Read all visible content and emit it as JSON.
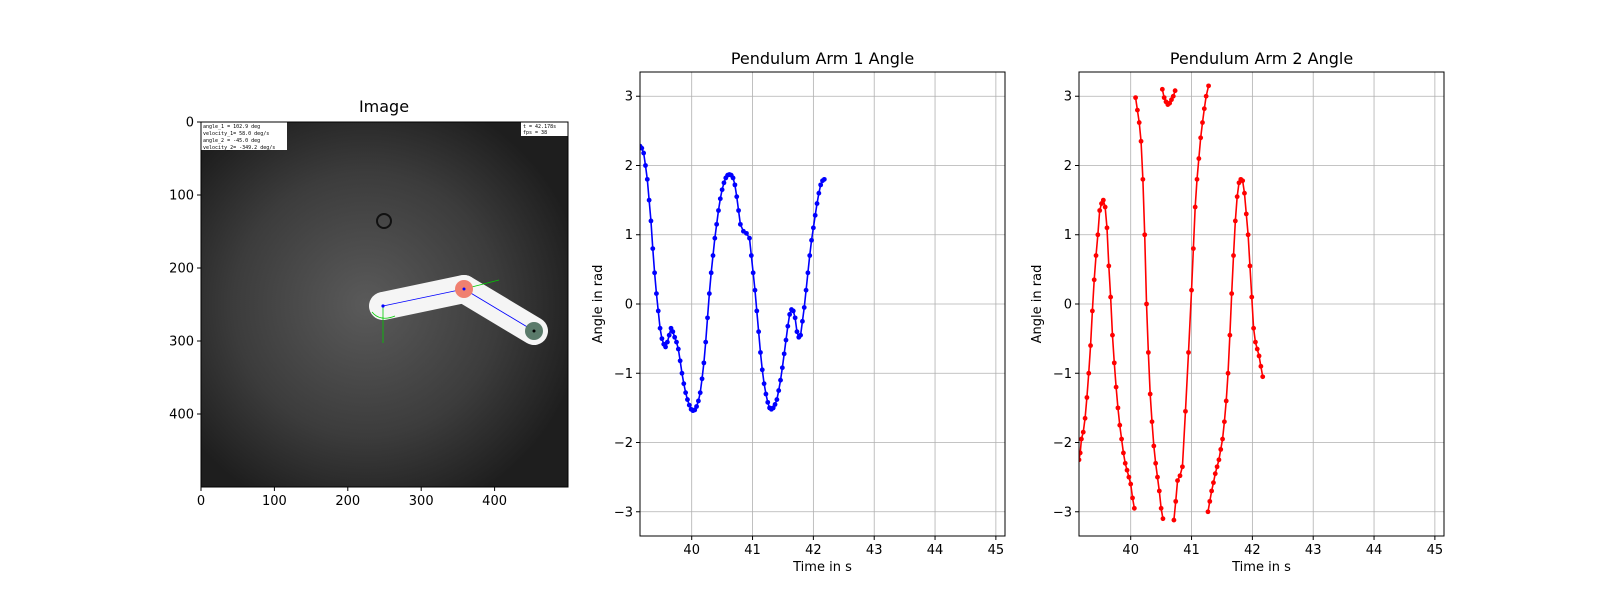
{
  "colors": {
    "arm1": "#0000ff",
    "arm2": "#ff0000",
    "grid": "#b0b0b0",
    "image_bg": "#3a3a3a",
    "joint1": "#f08070",
    "joint2": "#5a7a6a",
    "link_line": "#0000ff",
    "vector_line": "#00cc00"
  },
  "image_panel": {
    "title": "Image",
    "xticks": [
      "0",
      "100",
      "200",
      "300",
      "400"
    ],
    "yticks": [
      "0",
      "100",
      "200",
      "300",
      "400"
    ],
    "overlay_left": [
      "angle_1  =  102.9 deg",
      "velocity_1=  58.0 deg/s",
      "angle_2  =  -45.0 deg",
      "velocity_2=  -349.2 deg/s"
    ],
    "overlay_right": [
      "t  =  42.178s",
      "fps =  38"
    ]
  },
  "chart_data": [
    {
      "type": "line",
      "title": "Pendulum Arm 1 Angle",
      "xlabel": "Time in s",
      "ylabel": "Angle in rad",
      "xlim": [
        39.15,
        45.15
      ],
      "ylim": [
        -3.35,
        3.35
      ],
      "xticks": [
        40,
        41,
        42,
        43,
        44,
        45
      ],
      "yticks": [
        -3,
        -2,
        -1,
        0,
        1,
        2,
        3
      ],
      "grid": true,
      "series": [
        {
          "color": "#0000ff",
          "x": [
            39.15,
            39.18,
            39.21,
            39.24,
            39.27,
            39.3,
            39.33,
            39.36,
            39.39,
            39.42,
            39.45,
            39.48,
            39.51,
            39.54,
            39.57,
            39.6,
            39.63,
            39.66,
            39.69,
            39.72,
            39.75,
            39.78,
            39.81,
            39.84,
            39.87,
            39.9,
            39.93,
            39.96,
            39.99,
            40.02,
            40.05,
            40.08,
            40.11,
            40.14,
            40.17,
            40.2,
            40.23,
            40.26,
            40.29,
            40.32,
            40.35,
            40.38,
            40.41,
            40.44,
            40.47,
            40.5,
            40.53,
            40.56,
            40.59,
            40.62,
            40.65,
            40.68,
            40.71,
            40.74,
            40.77,
            40.8,
            40.85,
            40.9,
            40.95,
            40.98,
            41.01,
            41.04,
            41.07,
            41.1,
            41.13,
            41.16,
            41.19,
            41.22,
            41.25,
            41.28,
            41.31,
            41.34,
            41.37,
            41.4,
            41.43,
            41.46,
            41.49,
            41.52,
            41.55,
            41.58,
            41.61,
            41.64,
            41.67,
            41.7,
            41.73,
            41.76,
            41.79,
            41.82,
            41.85,
            41.88,
            41.91,
            41.94,
            41.97,
            42.0,
            42.03,
            42.06,
            42.09,
            42.12,
            42.15,
            42.18
          ],
          "y": [
            2.28,
            2.25,
            2.18,
            2.0,
            1.8,
            1.5,
            1.2,
            0.8,
            0.45,
            0.15,
            -0.1,
            -0.35,
            -0.5,
            -0.58,
            -0.62,
            -0.55,
            -0.45,
            -0.35,
            -0.4,
            -0.48,
            -0.55,
            -0.65,
            -0.82,
            -1.0,
            -1.15,
            -1.28,
            -1.38,
            -1.46,
            -1.52,
            -1.54,
            -1.53,
            -1.48,
            -1.4,
            -1.28,
            -1.08,
            -0.85,
            -0.55,
            -0.2,
            0.15,
            0.45,
            0.7,
            0.95,
            1.15,
            1.35,
            1.52,
            1.65,
            1.75,
            1.82,
            1.86,
            1.87,
            1.86,
            1.82,
            1.72,
            1.55,
            1.35,
            1.15,
            1.05,
            1.02,
            0.95,
            0.7,
            0.45,
            0.2,
            -0.1,
            -0.4,
            -0.7,
            -0.95,
            -1.15,
            -1.3,
            -1.42,
            -1.5,
            -1.52,
            -1.5,
            -1.45,
            -1.38,
            -1.25,
            -1.1,
            -0.92,
            -0.72,
            -0.52,
            -0.32,
            -0.15,
            -0.08,
            -0.1,
            -0.2,
            -0.4,
            -0.48,
            -0.45,
            -0.25,
            -0.05,
            0.2,
            0.45,
            0.7,
            0.92,
            1.1,
            1.28,
            1.45,
            1.6,
            1.72,
            1.78,
            1.8
          ]
        }
      ]
    },
    {
      "type": "line",
      "title": "Pendulum Arm 2 Angle",
      "xlabel": "Time in s",
      "ylabel": "Angle in rad",
      "xlim": [
        39.15,
        45.15
      ],
      "ylim": [
        -3.35,
        3.35
      ],
      "xticks": [
        40,
        41,
        42,
        43,
        44,
        45
      ],
      "yticks": [
        -3,
        -2,
        -1,
        0,
        1,
        2,
        3
      ],
      "grid": true,
      "series": [
        {
          "color": "#ff0000",
          "segments": [
            {
              "x": [
                39.15,
                39.17,
                39.19,
                39.22,
                39.25,
                39.28,
                39.31,
                39.34,
                39.37,
                39.4,
                39.43,
                39.46,
                39.49,
                39.52,
                39.55,
                39.58,
                39.61,
                39.64,
                39.67,
                39.7,
                39.73,
                39.76,
                39.79,
                39.82,
                39.85,
                39.88,
                39.91,
                39.94,
                39.97,
                40.0,
                40.03,
                40.06
              ],
              "y": [
                -2.25,
                -2.15,
                -1.95,
                -1.85,
                -1.65,
                -1.35,
                -1.0,
                -0.6,
                -0.1,
                0.35,
                0.7,
                1.0,
                1.35,
                1.45,
                1.5,
                1.4,
                1.1,
                0.55,
                0.1,
                -0.45,
                -0.85,
                -1.2,
                -1.5,
                -1.75,
                -1.95,
                -2.15,
                -2.3,
                -2.4,
                -2.5,
                -2.6,
                -2.8,
                -2.95
              ]
            },
            {
              "x": [
                40.08,
                40.11,
                40.14,
                40.17,
                40.2,
                40.23,
                40.26,
                40.29,
                40.32,
                40.35,
                40.38,
                40.41,
                40.44,
                40.47,
                40.5,
                40.53
              ],
              "y": [
                2.98,
                2.8,
                2.62,
                2.35,
                1.8,
                1.0,
                0.0,
                -0.7,
                -1.3,
                -1.7,
                -2.05,
                -2.3,
                -2.5,
                -2.7,
                -2.95,
                -3.1
              ]
            },
            {
              "x": [
                40.52,
                40.55,
                40.58,
                40.61,
                40.64,
                40.67,
                40.7,
                40.73
              ],
              "y": [
                3.1,
                2.98,
                2.92,
                2.88,
                2.9,
                2.95,
                3.0,
                3.08
              ]
            },
            {
              "x": [
                40.71,
                40.74,
                40.77,
                40.81,
                40.85,
                40.9,
                40.95,
                41.0,
                41.03,
                41.06,
                41.09,
                41.12,
                41.15,
                41.18,
                41.21,
                41.24,
                41.28
              ],
              "y": [
                -3.12,
                -2.85,
                -2.55,
                -2.48,
                -2.35,
                -1.55,
                -0.7,
                0.2,
                0.8,
                1.4,
                1.8,
                2.1,
                2.4,
                2.62,
                2.82,
                3.0,
                3.15
              ]
            },
            {
              "x": [
                41.27,
                41.3,
                41.33,
                41.36,
                41.39,
                41.42,
                41.45,
                41.48,
                41.51,
                41.54,
                41.57,
                41.6,
                41.63,
                41.66,
                41.69,
                41.72,
                41.75,
                41.78,
                41.81,
                41.84,
                41.87,
                41.9,
                41.93,
                41.96,
                41.99,
                42.02,
                42.05,
                42.08,
                42.11,
                42.14,
                42.17
              ],
              "y": [
                -3.0,
                -2.85,
                -2.7,
                -2.58,
                -2.45,
                -2.35,
                -2.25,
                -2.1,
                -1.95,
                -1.7,
                -1.4,
                -1.0,
                -0.45,
                0.15,
                0.7,
                1.2,
                1.55,
                1.75,
                1.8,
                1.78,
                1.6,
                1.3,
                1.0,
                0.55,
                0.1,
                -0.35,
                -0.55,
                -0.65,
                -0.75,
                -0.9,
                -1.05
              ]
            }
          ]
        }
      ]
    }
  ]
}
